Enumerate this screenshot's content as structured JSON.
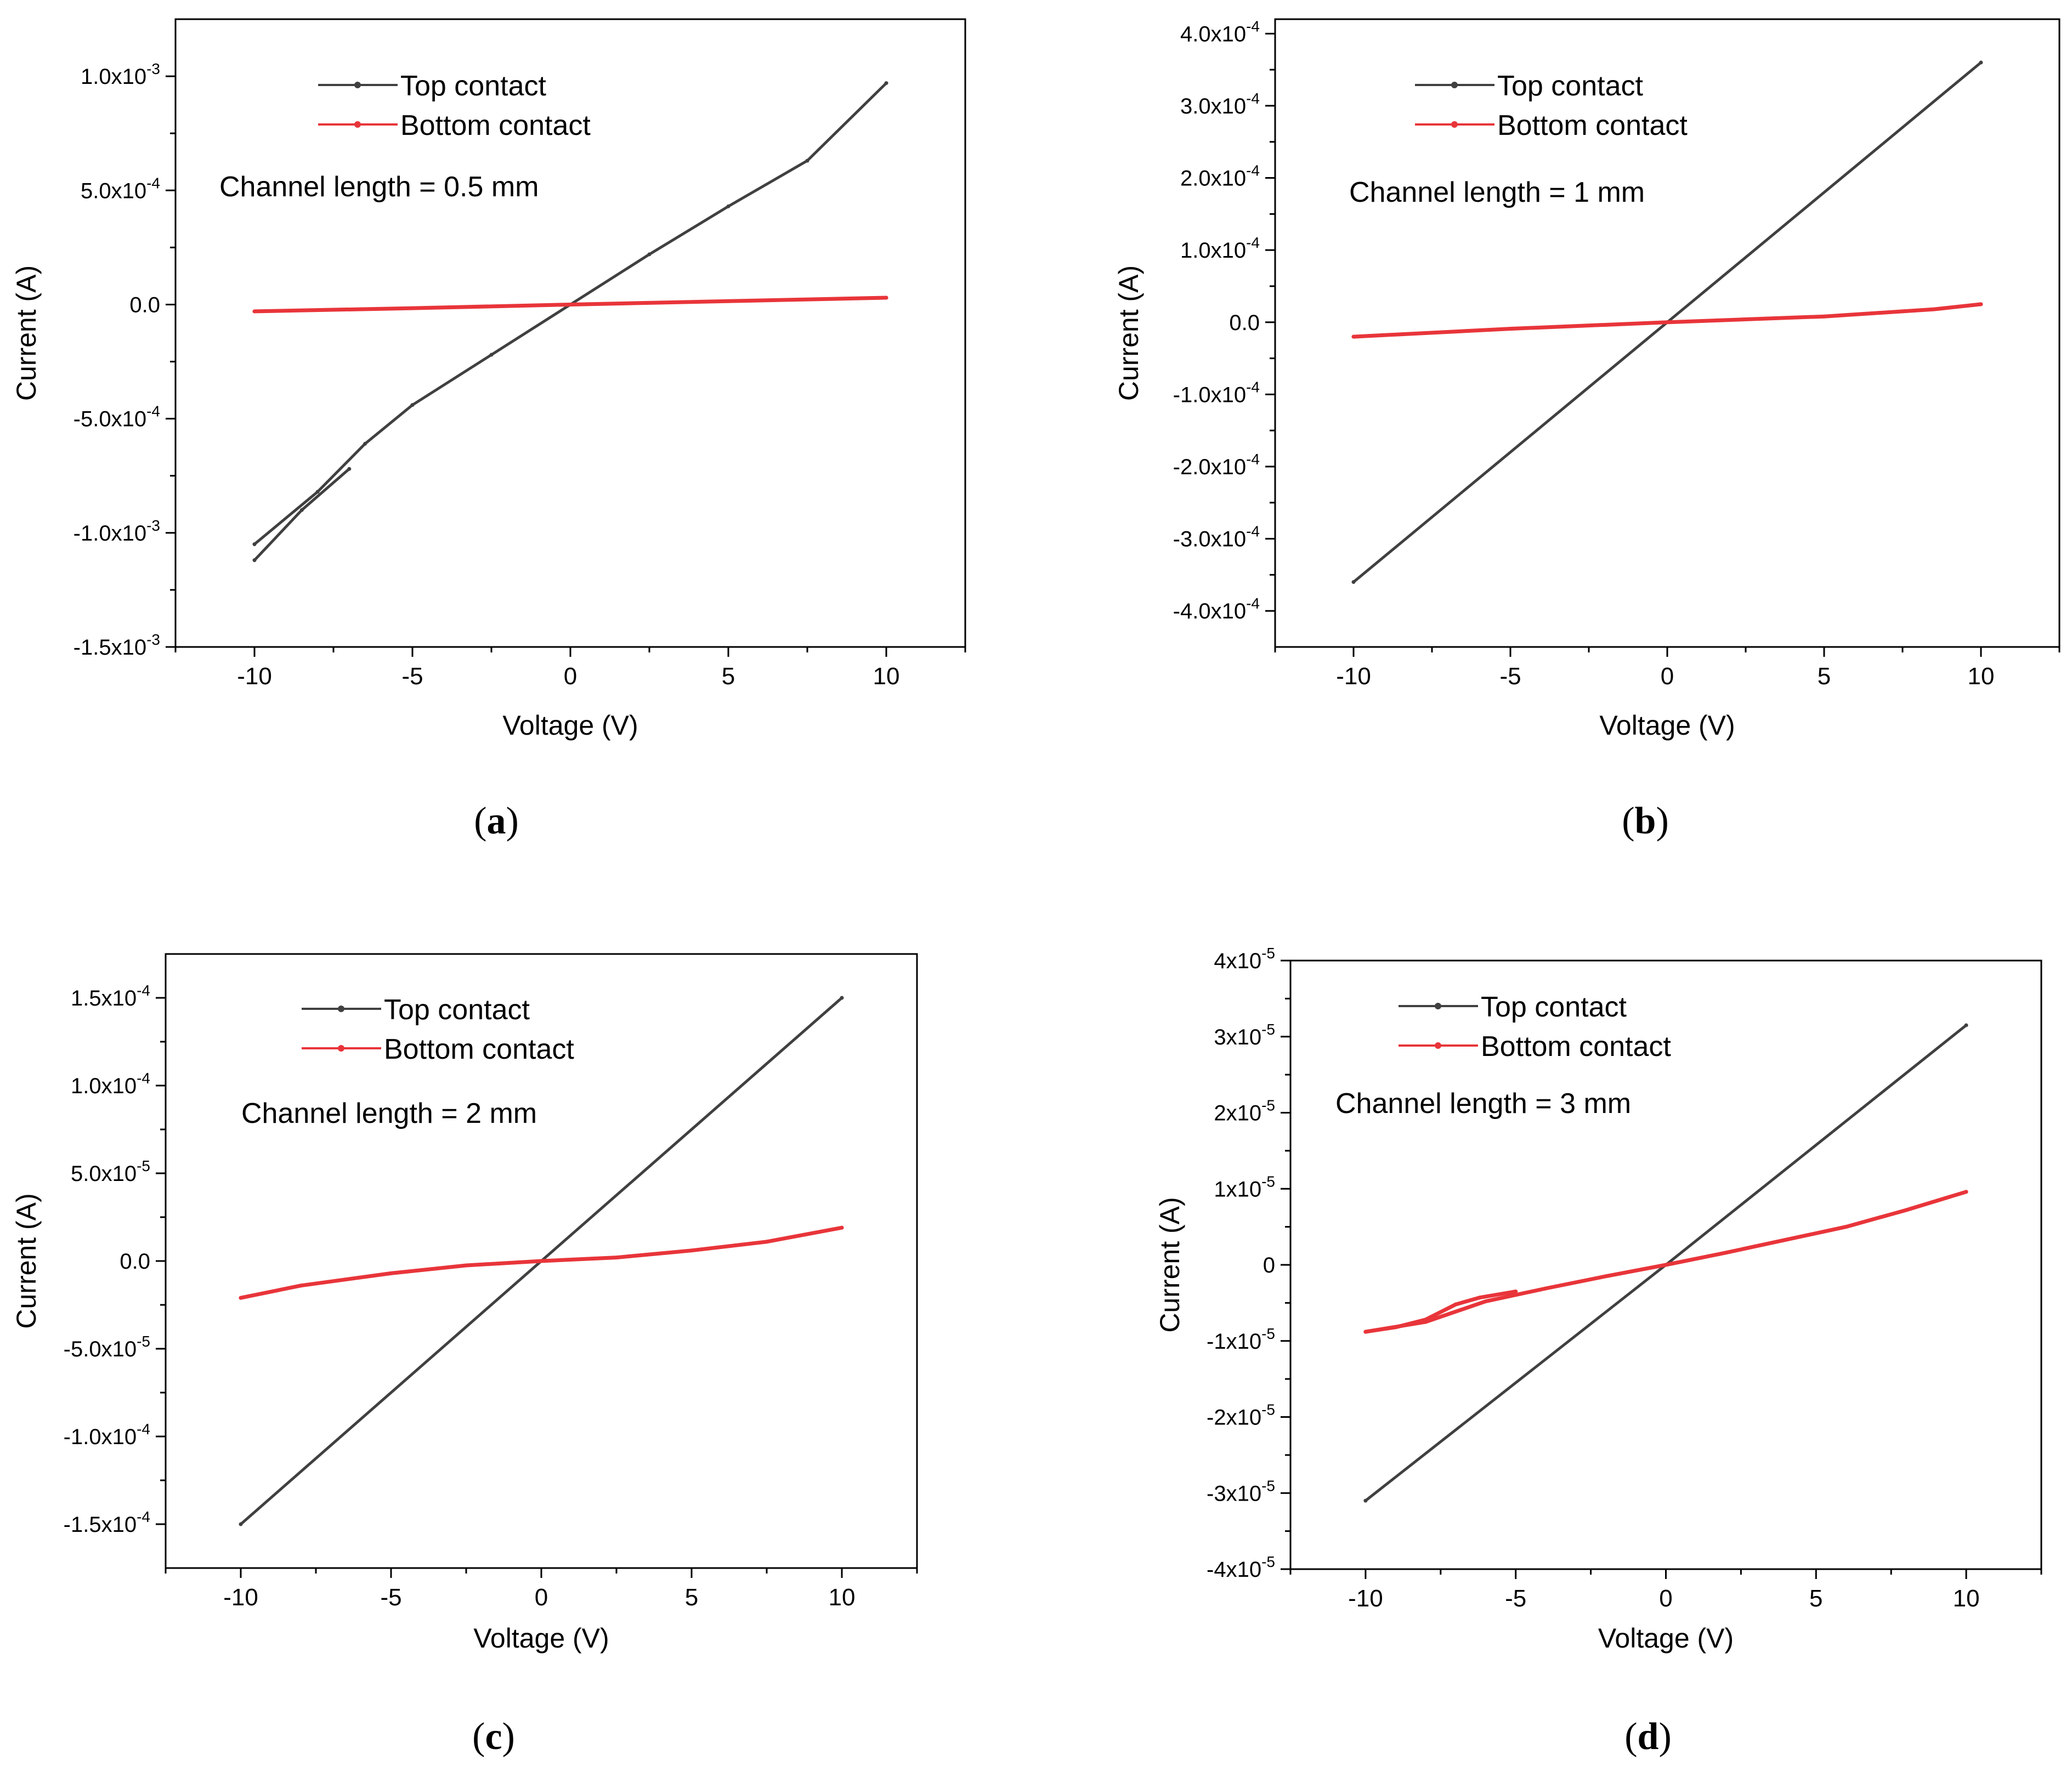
{
  "colors": {
    "top": "#404040",
    "bottom": "#e8353a",
    "axis": "#000000",
    "text": "#000000"
  },
  "chart_data": [
    {
      "type": "line",
      "panel": "a",
      "caption_letter": "a",
      "xlabel": "Voltage (V)",
      "ylabel": "Current (A)",
      "annotation": "Channel length = 0.5 mm",
      "legend": [
        "Top contact",
        "Bottom contact"
      ],
      "legend_position": "top-left",
      "xlim": [
        -12.5,
        12.5
      ],
      "ylim": [
        -0.0015,
        0.00125
      ],
      "xticks": [
        {
          "v": -10,
          "label": "-10"
        },
        {
          "v": -5,
          "label": "-5"
        },
        {
          "v": 0,
          "label": "0"
        },
        {
          "v": 5,
          "label": "5"
        },
        {
          "v": 10,
          "label": "10"
        }
      ],
      "yticks": [
        {
          "v": 0.001,
          "m": "1.0x10",
          "e": "-3"
        },
        {
          "v": 0.0005,
          "m": "5.0x10",
          "e": "-4"
        },
        {
          "v": 0,
          "m": "0.0",
          "e": ""
        },
        {
          "v": -0.0005,
          "m": "-5.0x10",
          "e": "-4"
        },
        {
          "v": -0.001,
          "m": "-1.0x10",
          "e": "-3"
        },
        {
          "v": -0.0015,
          "m": "-1.5x10",
          "e": "-3"
        }
      ],
      "series": [
        {
          "name": "Top contact",
          "color_key": "top",
          "x": [
            -10,
            -8,
            -6.5,
            -5,
            -2.5,
            0,
            2.5,
            5,
            7.5,
            10
          ],
          "y": [
            -0.00105,
            -0.00082,
            -0.00061,
            -0.00044,
            -0.00022,
            0,
            0.00022,
            0.00043,
            0.00063,
            0.00097
          ]
        },
        {
          "name": "Top contact (return sweep)",
          "color_key": "top",
          "x": [
            -10,
            -8.5,
            -7
          ],
          "y": [
            -0.00112,
            -0.0009,
            -0.00072
          ]
        },
        {
          "name": "Bottom contact",
          "color_key": "bottom",
          "x": [
            -10,
            -5,
            0,
            5,
            10
          ],
          "y": [
            -3e-05,
            -1.6e-05,
            0,
            1.5e-05,
            3e-05
          ]
        }
      ]
    },
    {
      "type": "line",
      "panel": "b",
      "caption_letter": "b",
      "xlabel": "Voltage (V)",
      "ylabel": "Current (A)",
      "annotation": "Channel length = 1 mm",
      "legend": [
        "Top contact",
        "Bottom contact"
      ],
      "legend_position": "top-left",
      "xlim": [
        -12.5,
        12.5
      ],
      "ylim": [
        -0.00045,
        0.00042
      ],
      "xticks": [
        {
          "v": -10,
          "label": "-10"
        },
        {
          "v": -5,
          "label": "-5"
        },
        {
          "v": 0,
          "label": "0"
        },
        {
          "v": 5,
          "label": "5"
        },
        {
          "v": 10,
          "label": "10"
        }
      ],
      "yticks": [
        {
          "v": 0.0004,
          "m": "4.0x10",
          "e": "-4"
        },
        {
          "v": 0.0003,
          "m": "3.0x10",
          "e": "-4"
        },
        {
          "v": 0.0002,
          "m": "2.0x10",
          "e": "-4"
        },
        {
          "v": 0.0001,
          "m": "1.0x10",
          "e": "-4"
        },
        {
          "v": 0,
          "m": "0.0",
          "e": ""
        },
        {
          "v": -0.0001,
          "m": "-1.0x10",
          "e": "-4"
        },
        {
          "v": -0.0002,
          "m": "-2.0x10",
          "e": "-4"
        },
        {
          "v": -0.0003,
          "m": "-3.0x10",
          "e": "-4"
        },
        {
          "v": -0.0004,
          "m": "-4.0x10",
          "e": "-4"
        }
      ],
      "series": [
        {
          "name": "Top contact",
          "color_key": "top",
          "x": [
            -10,
            0,
            10
          ],
          "y": [
            -0.00036,
            0,
            0.00036
          ]
        },
        {
          "name": "Bottom contact",
          "color_key": "bottom",
          "x": [
            -10,
            -5,
            0,
            5,
            8.5,
            10
          ],
          "y": [
            -2e-05,
            -9e-06,
            0,
            8e-06,
            1.8e-05,
            2.5e-05
          ]
        }
      ]
    },
    {
      "type": "line",
      "panel": "c",
      "caption_letter": "c",
      "xlabel": "Voltage (V)",
      "ylabel": "Current (A)",
      "annotation": "Channel length = 2 mm",
      "legend": [
        "Top contact",
        "Bottom contact"
      ],
      "legend_position": "top-left",
      "xlim": [
        -12.5,
        12.5
      ],
      "ylim": [
        -0.000175,
        0.000175
      ],
      "xticks": [
        {
          "v": -10,
          "label": "-10"
        },
        {
          "v": -5,
          "label": "-5"
        },
        {
          "v": 0,
          "label": "0"
        },
        {
          "v": 5,
          "label": "5"
        },
        {
          "v": 10,
          "label": "10"
        }
      ],
      "yticks": [
        {
          "v": 0.00015,
          "m": "1.5x10",
          "e": "-4"
        },
        {
          "v": 0.0001,
          "m": "1.0x10",
          "e": "-4"
        },
        {
          "v": 5e-05,
          "m": "5.0x10",
          "e": "-5"
        },
        {
          "v": 0,
          "m": "0.0",
          "e": ""
        },
        {
          "v": -5e-05,
          "m": "-5.0x10",
          "e": "-5"
        },
        {
          "v": -0.0001,
          "m": "-1.0x10",
          "e": "-4"
        },
        {
          "v": -0.00015,
          "m": "-1.5x10",
          "e": "-4"
        }
      ],
      "series": [
        {
          "name": "Top contact",
          "color_key": "top",
          "x": [
            -10,
            0,
            10
          ],
          "y": [
            -0.00015,
            0,
            0.00015
          ]
        },
        {
          "name": "Bottom contact",
          "color_key": "bottom",
          "x": [
            -10,
            -8,
            -5,
            -2.5,
            0,
            2.5,
            5,
            7.5,
            10
          ],
          "y": [
            -2.1e-05,
            -1.4e-05,
            -7e-06,
            -2.5e-06,
            0,
            2e-06,
            6e-06,
            1.1e-05,
            1.9e-05
          ]
        }
      ]
    },
    {
      "type": "line",
      "panel": "d",
      "caption_letter": "d",
      "xlabel": "Voltage (V)",
      "ylabel": "Current (A)",
      "annotation": "Channel length = 3 mm",
      "legend": [
        "Top contact",
        "Bottom contact"
      ],
      "legend_position": "top-left",
      "xlim": [
        -12.5,
        12.5
      ],
      "ylim": [
        -4e-05,
        4e-05
      ],
      "xticks": [
        {
          "v": -10,
          "label": "-10"
        },
        {
          "v": -5,
          "label": "-5"
        },
        {
          "v": 0,
          "label": "0"
        },
        {
          "v": 5,
          "label": "5"
        },
        {
          "v": 10,
          "label": "10"
        }
      ],
      "yticks": [
        {
          "v": 4e-05,
          "m": "4x10",
          "e": "-5"
        },
        {
          "v": 3e-05,
          "m": "3x10",
          "e": "-5"
        },
        {
          "v": 2e-05,
          "m": "2x10",
          "e": "-5"
        },
        {
          "v": 1e-05,
          "m": "1x10",
          "e": "-5"
        },
        {
          "v": 0,
          "m": "0",
          "e": ""
        },
        {
          "v": -1e-05,
          "m": "-1x10",
          "e": "-5"
        },
        {
          "v": -2e-05,
          "m": "-2x10",
          "e": "-5"
        },
        {
          "v": -3e-05,
          "m": "-3x10",
          "e": "-5"
        },
        {
          "v": -4e-05,
          "m": "-4x10",
          "e": "-5"
        }
      ],
      "series": [
        {
          "name": "Top contact",
          "color_key": "top",
          "x": [
            -10,
            0,
            10
          ],
          "y": [
            -3.1e-05,
            0,
            3.15e-05
          ]
        },
        {
          "name": "Bottom contact",
          "color_key": "bottom",
          "x": [
            -10,
            -8,
            -6,
            -4,
            -2,
            0,
            2,
            4,
            6,
            8,
            10
          ],
          "y": [
            -8.8e-06,
            -7.5e-06,
            -4.8e-06,
            -3.1e-06,
            -1.5e-06,
            0,
            1.6e-06,
            3.3e-06,
            5e-06,
            7.2e-06,
            9.6e-06
          ]
        },
        {
          "name": "Bottom contact (return sweep)",
          "color_key": "bottom",
          "x": [
            -10,
            -9,
            -8,
            -7,
            -6.2,
            -5
          ],
          "y": [
            -8.8e-06,
            -8.2e-06,
            -7.2e-06,
            -5.2e-06,
            -4.3e-06,
            -3.5e-06
          ]
        }
      ]
    }
  ]
}
